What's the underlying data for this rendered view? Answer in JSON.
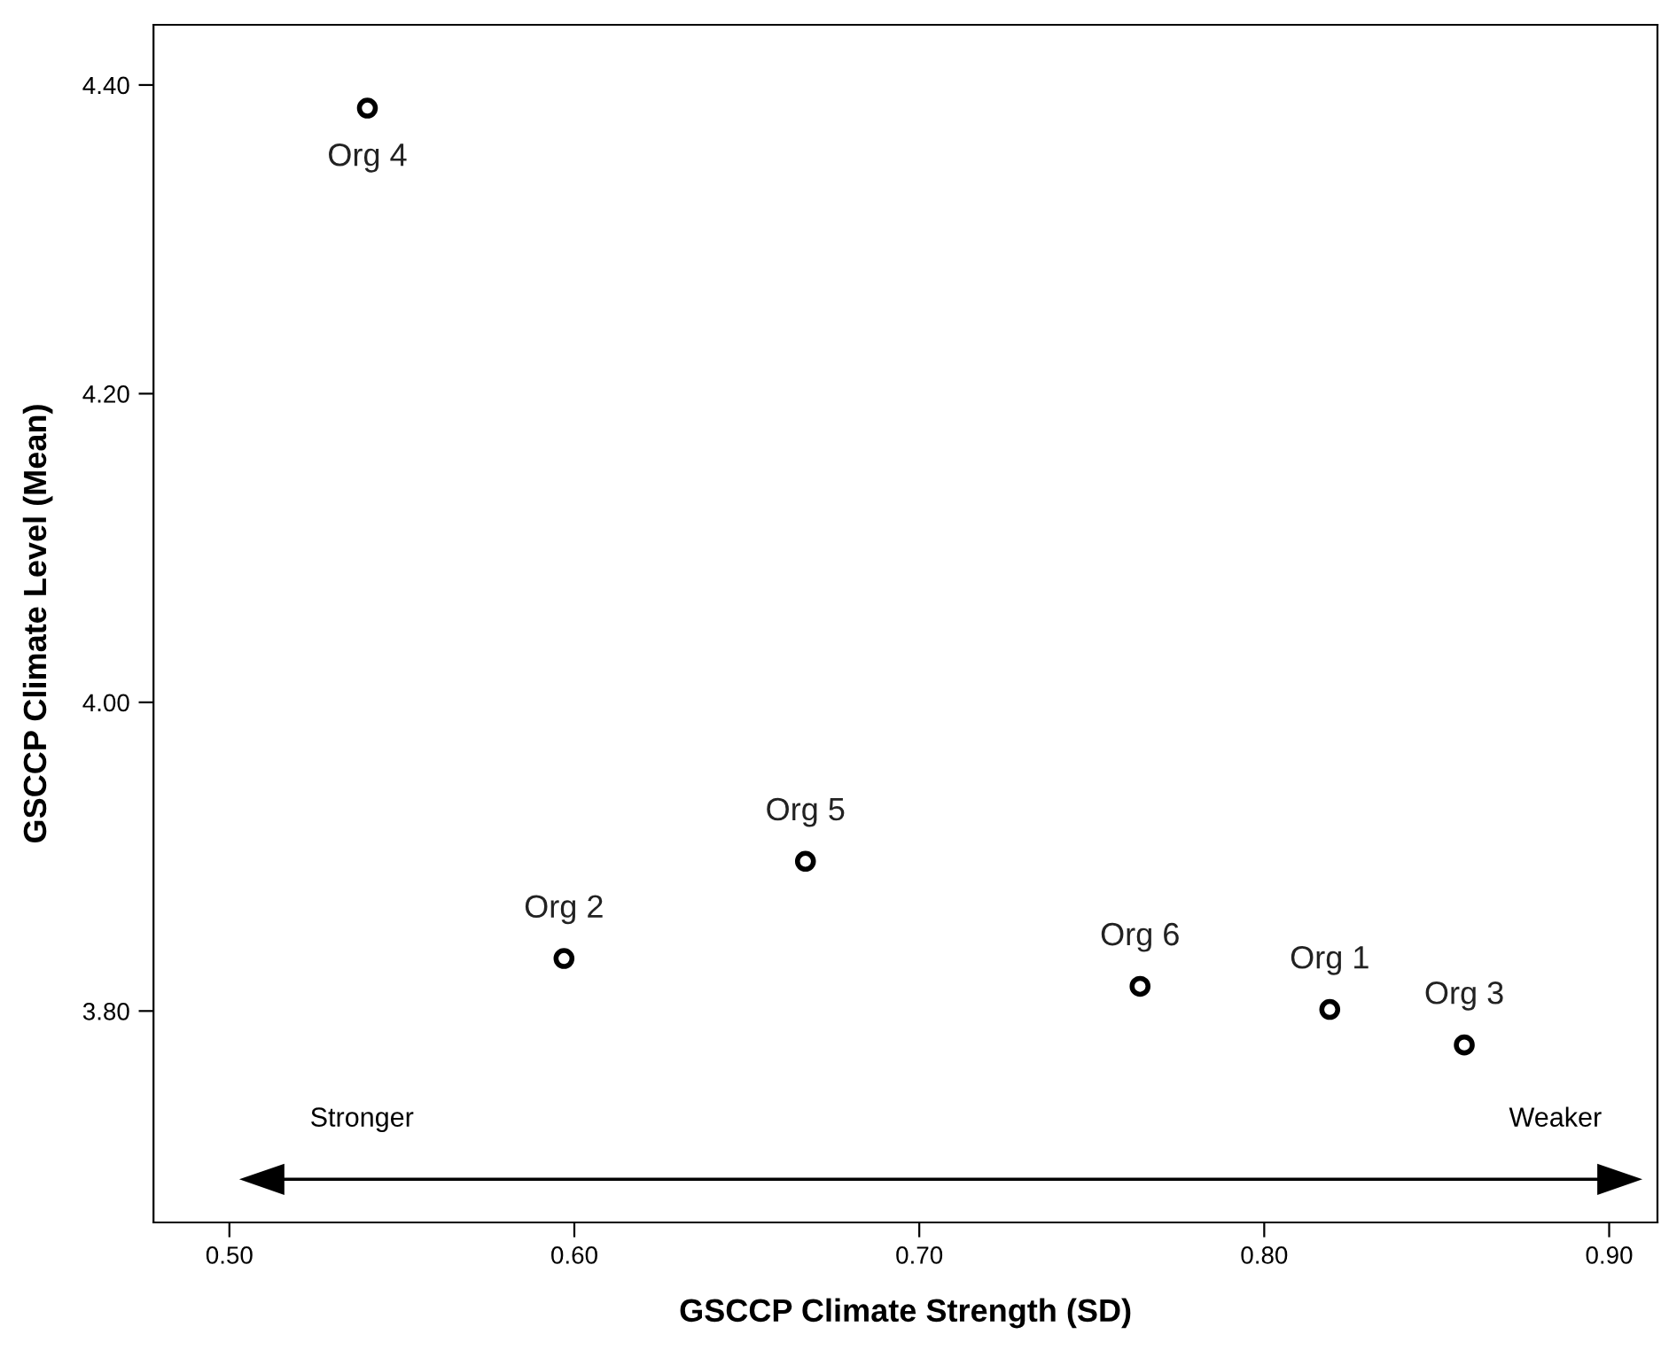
{
  "chart_data": {
    "type": "scatter",
    "xlabel": "GSCCP Climate Strength (SD)",
    "ylabel": "GSCCP Climate Level (Mean)",
    "x": [
      0.54,
      0.597,
      0.667,
      0.764,
      0.819,
      0.858
    ],
    "values": [
      4.385,
      3.834,
      3.897,
      3.816,
      3.801,
      3.778
    ],
    "color": "#000000",
    "marker": "circle",
    "xlim": [
      0.478,
      0.914
    ],
    "ylim": [
      3.663,
      4.439
    ],
    "xticks": [
      {
        "value": 0.5,
        "label": "0.50"
      },
      {
        "value": 0.6,
        "label": "0.60"
      },
      {
        "value": 0.7,
        "label": "0.70"
      },
      {
        "value": 0.8,
        "label": "0.80"
      },
      {
        "value": 0.9,
        "label": "0.90"
      }
    ],
    "yticks": [
      {
        "value": 3.8,
        "label": "3.80"
      },
      {
        "value": 4.0,
        "label": "4.00"
      },
      {
        "value": 4.2,
        "label": "4.20"
      },
      {
        "value": 4.4,
        "label": "4.40"
      }
    ],
    "grid": false,
    "annotations": [
      {
        "text": "Org 4",
        "x": 0.54,
        "y": 4.385
      },
      {
        "text": "Org 2",
        "x": 0.597,
        "y": 3.834
      },
      {
        "text": "Org 5",
        "x": 0.667,
        "y": 3.897
      },
      {
        "text": "Org 6",
        "x": 0.764,
        "y": 3.816
      },
      {
        "text": "Org 1",
        "x": 0.819,
        "y": 3.801
      },
      {
        "text": "Org 3",
        "x": 0.858,
        "y": 3.778
      },
      "Stronger",
      "Weaker"
    ]
  }
}
